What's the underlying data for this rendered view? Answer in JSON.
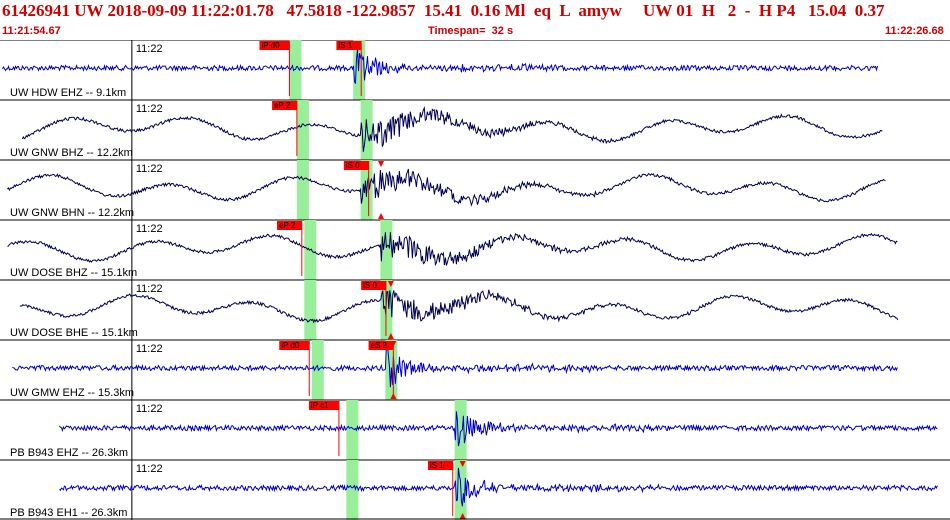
{
  "header": {
    "event_id": "61426941",
    "network": "UW",
    "datetime": "2018-09-09 11:22:01.78",
    "lat": "47.5818",
    "lon": "-122.9857",
    "depth": "15.41",
    "magnitude": "0.16",
    "mag_type": "Ml",
    "etype": "eq",
    "flag": "L",
    "author": "amyw",
    "source": "UW",
    "version": "01",
    "quality": "H",
    "nph": "2",
    "dash": "-",
    "phase_q": "H P4",
    "dist": "15.04",
    "rms": "0.37"
  },
  "subheader": {
    "start_time": "11:21:54.67",
    "timespan_label": "Timespan=  32 s",
    "end_time": "11:22:26.68"
  },
  "colors": {
    "accent": "#cc0000",
    "trace_blue": "#0000cc",
    "trace_navy": "#000055",
    "highlight": "#99ee99",
    "pick_flag": "#ff0000"
  },
  "channels": [
    {
      "label": "UW HDW EHZ -- 9.1km",
      "tick": "11:22",
      "trace_color": "blue",
      "picks": [
        {
          "text": "iP d0",
          "time": 11.7
        },
        {
          "text": "iS 1",
          "time": 14.6
        }
      ],
      "windows": [
        11.7,
        14.6
      ],
      "onset": 14.6,
      "start": 0.1,
      "end": 35.5
    },
    {
      "label": "UW GNW BHZ -- 12.2km",
      "tick": "11:22",
      "trace_color": "navy",
      "picks": [
        {
          "text": "eP 2",
          "time": 12.0
        }
      ],
      "windows": [
        12.0,
        14.9
      ],
      "onset": 14.9,
      "start": 0.9,
      "end": 35.7
    },
    {
      "label": "UW GNW BHN -- 12.2km",
      "tick": "11:22",
      "trace_color": "navy",
      "picks": [
        {
          "text": "iS 0",
          "time": 14.9
        }
      ],
      "windows": [
        12.0,
        14.9
      ],
      "onset": 14.9,
      "start": 0.3,
      "end": 35.8,
      "triangle": 15.4
    },
    {
      "label": "UW DOSE BHZ -- 15.1km",
      "tick": "11:22",
      "trace_color": "navy",
      "picks": [
        {
          "text": "eP 2",
          "time": 12.2
        }
      ],
      "windows": [
        12.3,
        15.7
      ],
      "onset": 15.7,
      "start": 0.3,
      "end": 36.3
    },
    {
      "label": "UW DOSE BHE -- 15.1km",
      "tick": "11:22",
      "trace_color": "navy",
      "picks": [
        {
          "text": "iS 0",
          "time": 15.6
        }
      ],
      "windows": [
        12.3,
        15.7
      ],
      "onset": 15.7,
      "start": 0.8,
      "end": 36.3,
      "triangle": 15.8
    },
    {
      "label": "UW GMW EHZ -- 15.3km",
      "tick": "11:22",
      "trace_color": "blue",
      "picks": [
        {
          "text": "iP d0",
          "time": 12.5
        },
        {
          "text": "eS 2",
          "time": 15.9
        }
      ],
      "windows": [
        12.6,
        15.9
      ],
      "onset": 15.9,
      "start": 0.5,
      "end": 36.3,
      "triangle": 15.9
    },
    {
      "label": "PB B943 EHZ -- 26.3km",
      "tick": "11:22",
      "trace_color": "blue",
      "picks": [
        {
          "text": "iP c1",
          "time": 13.7
        }
      ],
      "windows": [
        14.0,
        18.7
      ],
      "onset": 18.7,
      "start": 2.4,
      "end": 37.9
    },
    {
      "label": "PB B943 EH1 -- 26.3km",
      "tick": "11:22",
      "trace_color": "blue",
      "picks": [
        {
          "text": "iS 1",
          "time": 18.3
        }
      ],
      "windows": [
        14.0,
        18.7
      ],
      "onset": 18.7,
      "start": 2.4,
      "end": 37.9,
      "triangle": 18.7
    }
  ]
}
